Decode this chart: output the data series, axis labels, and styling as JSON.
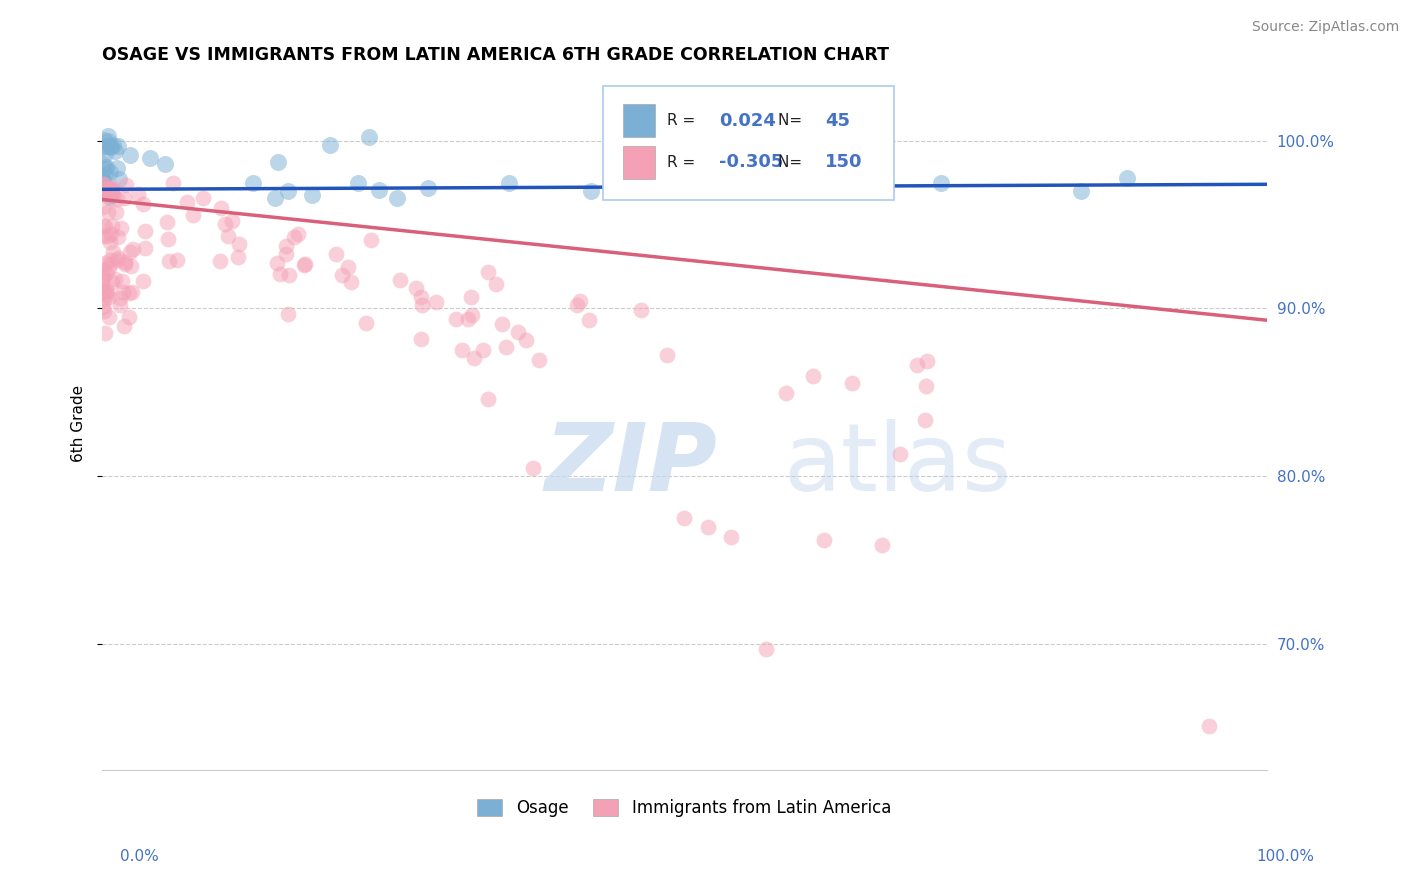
{
  "title": "OSAGE VS IMMIGRANTS FROM LATIN AMERICA 6TH GRADE CORRELATION CHART",
  "source": "Source: ZipAtlas.com",
  "ylabel": "6th Grade",
  "xlim": [
    0.0,
    1.0
  ],
  "ylim": [
    0.625,
    1.038
  ],
  "blue_R": 0.024,
  "blue_N": 45,
  "pink_R": -0.305,
  "pink_N": 150,
  "blue_color": "#7bafd4",
  "pink_color": "#f4a0b5",
  "blue_line_color": "#2255bb",
  "pink_line_color": "#d9607a",
  "label_color": "#4472C4",
  "legend_label_blue": "Osage",
  "legend_label_pink": "Immigrants from Latin America",
  "yticks": [
    0.7,
    0.8,
    0.9,
    1.0
  ],
  "ytick_labels": [
    "70.0%",
    "80.0%",
    "90.0%",
    "100.0%"
  ],
  "blue_line_x0": 0.0,
  "blue_line_x1": 1.0,
  "blue_line_y0": 0.971,
  "blue_line_y1": 0.974,
  "pink_line_x0": 0.0,
  "pink_line_x1": 1.0,
  "pink_line_y0": 0.965,
  "pink_line_y1": 0.893
}
